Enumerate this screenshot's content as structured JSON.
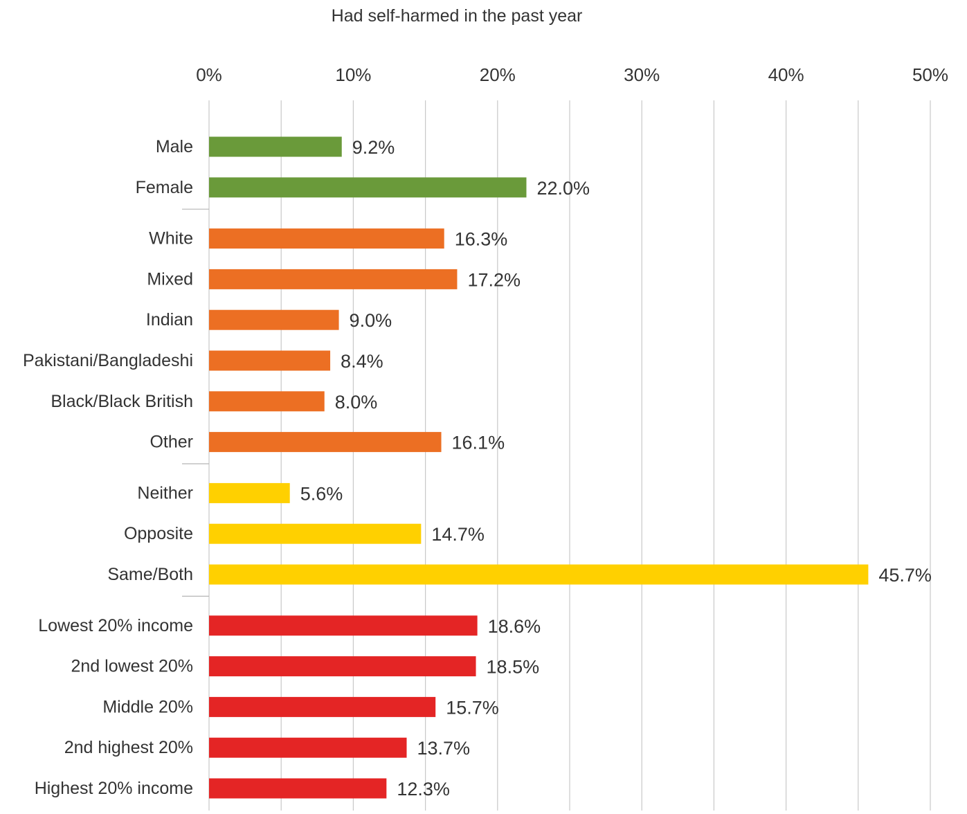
{
  "chart_data": {
    "type": "bar",
    "orientation": "horizontal",
    "title": "Had self-harmed in the past year",
    "xlabel": "",
    "ylabel": "",
    "xlim": [
      0,
      50
    ],
    "x_ticks": [
      "0%",
      "10%",
      "20%",
      "30%",
      "40%",
      "50%"
    ],
    "grid": true,
    "value_format": "percent_1dp",
    "groups": [
      {
        "color": "#6a9a3a",
        "categories": [
          "Male",
          "Female"
        ],
        "values": [
          9.2,
          22.0
        ],
        "labels": [
          "9.2%",
          "22.0%"
        ]
      },
      {
        "color": "#ec6f23",
        "categories": [
          "White",
          "Mixed",
          "Indian",
          "Pakistani/Bangladeshi",
          "Black/Black British",
          "Other"
        ],
        "values": [
          16.3,
          17.2,
          9.0,
          8.4,
          8.0,
          16.1
        ],
        "labels": [
          "16.3%",
          "17.2%",
          "9.0%",
          "8.4%",
          "8.0%",
          "16.1%"
        ]
      },
      {
        "color": "#ffd000",
        "categories": [
          "Neither",
          "Opposite",
          "Same/Both"
        ],
        "values": [
          5.6,
          14.7,
          45.7
        ],
        "labels": [
          "5.6%",
          "14.7%",
          "45.7%"
        ]
      },
      {
        "color": "#e42525",
        "categories": [
          "Lowest 20% income",
          "2nd lowest 20%",
          "Middle 20%",
          "2nd highest 20%",
          "Highest 20% income"
        ],
        "values": [
          18.6,
          18.5,
          15.7,
          13.7,
          12.3
        ],
        "labels": [
          "18.6%",
          "18.5%",
          "15.7%",
          "13.7%",
          "12.3%"
        ]
      }
    ]
  }
}
